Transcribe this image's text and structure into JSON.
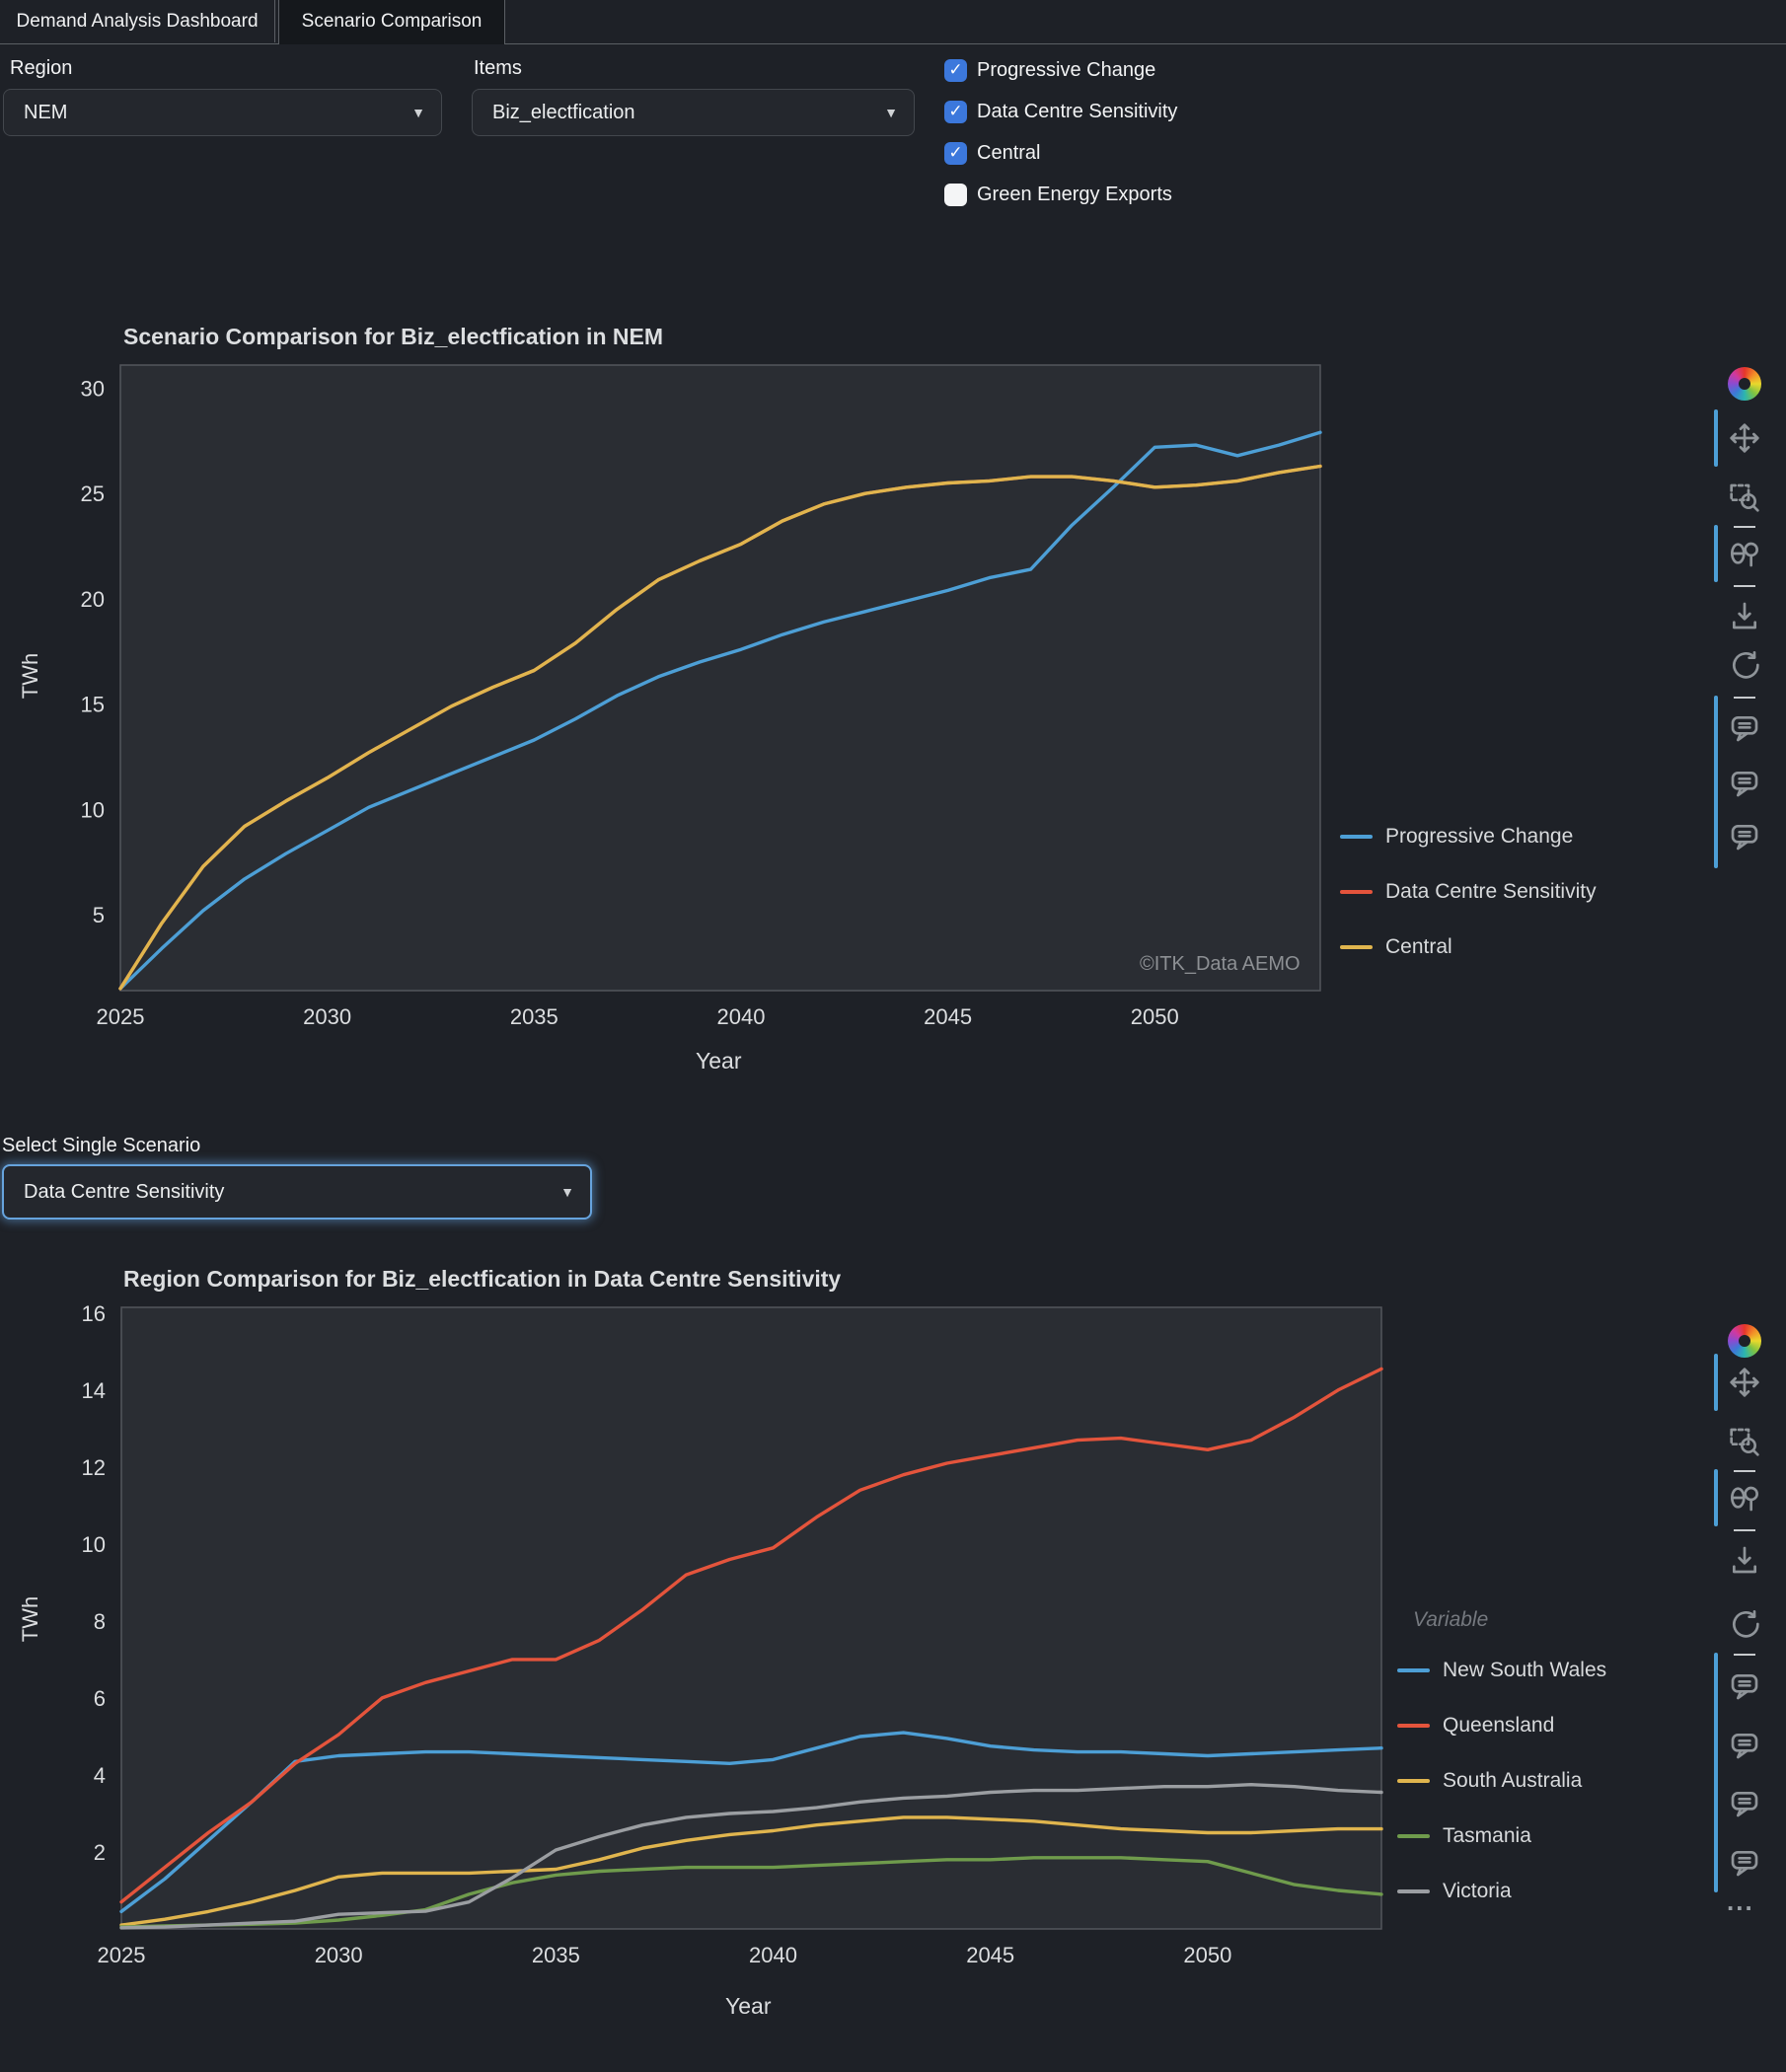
{
  "tabs": [
    {
      "label": "Demand Analysis Dashboard",
      "active": false
    },
    {
      "label": "Scenario Comparison",
      "active": true
    }
  ],
  "controls": {
    "region_label": "Region",
    "region_value": "NEM",
    "items_label": "Items",
    "items_value": "Biz_electfication",
    "checkboxes": [
      {
        "label": "Progressive Change",
        "checked": true
      },
      {
        "label": "Data Centre Sensitivity",
        "checked": true
      },
      {
        "label": "Central",
        "checked": true
      },
      {
        "label": "Green Energy Exports",
        "checked": false
      }
    ],
    "scenario_label": "Select Single Scenario",
    "scenario_value": "Data Centre Sensitivity"
  },
  "watermark": "©ITK_Data AEMO",
  "modebar": {
    "dots": "...",
    "icons": [
      "plotly-logo",
      "pan",
      "box-zoom",
      "compare-hover",
      "download",
      "reset-axes",
      "comment"
    ]
  },
  "colors": {
    "accent_blue": "#4d9fd6",
    "checkbox_blue": "#3c78dc",
    "plot_bg": "#2a2d33",
    "page_bg": "#1e2127"
  },
  "chart_data": [
    {
      "type": "line",
      "title": "Scenario Comparison for Biz_electfication in NEM",
      "xlabel": "Year",
      "ylabel": "TWh",
      "xticks": [
        2025,
        2030,
        2035,
        2040,
        2045,
        2050
      ],
      "yticks": [
        5,
        10,
        15,
        20,
        25,
        30
      ],
      "xlim": [
        2025,
        2054
      ],
      "ylim": [
        1.4,
        31.1
      ],
      "grid": false,
      "legend_position": "bottom-right-outside",
      "render_note": "Only two lines are visible: Data Centre Sensitivity coincides with Central and is hidden beneath it",
      "x": [
        2025,
        2026,
        2027,
        2028,
        2029,
        2030,
        2031,
        2032,
        2033,
        2034,
        2035,
        2036,
        2037,
        2038,
        2039,
        2040,
        2041,
        2042,
        2043,
        2044,
        2045,
        2046,
        2047,
        2048,
        2049,
        2050,
        2051,
        2052,
        2053,
        2054
      ],
      "series": [
        {
          "name": "Progressive Change",
          "color": "#4d9fd6",
          "values": [
            1.5,
            3.4,
            5.2,
            6.7,
            7.9,
            9.0,
            10.1,
            10.9,
            11.7,
            12.5,
            13.3,
            14.3,
            15.4,
            16.3,
            17.0,
            17.6,
            18.3,
            18.9,
            19.4,
            19.9,
            20.4,
            21.0,
            21.4,
            23.5,
            25.3,
            27.2,
            27.3,
            26.8,
            27.3,
            27.9
          ]
        },
        {
          "name": "Data Centre Sensitivity",
          "color": "#e4543c",
          "values": [
            1.5,
            4.6,
            7.3,
            9.2,
            10.4,
            11.5,
            12.7,
            13.8,
            14.9,
            15.8,
            16.6,
            17.9,
            19.5,
            20.9,
            21.8,
            22.6,
            23.7,
            24.5,
            25.0,
            25.3,
            25.5,
            25.6,
            25.8,
            25.8,
            25.6,
            25.3,
            25.4,
            25.6,
            26.0,
            26.3
          ]
        },
        {
          "name": "Central",
          "color": "#e0b54e",
          "values": [
            1.5,
            4.6,
            7.3,
            9.2,
            10.4,
            11.5,
            12.7,
            13.8,
            14.9,
            15.8,
            16.6,
            17.9,
            19.5,
            20.9,
            21.8,
            22.6,
            23.7,
            24.5,
            25.0,
            25.3,
            25.5,
            25.6,
            25.8,
            25.8,
            25.6,
            25.3,
            25.4,
            25.6,
            26.0,
            26.3
          ]
        }
      ]
    },
    {
      "type": "line",
      "title": "Region Comparison for Biz_electfication in Data Centre Sensitivity",
      "xlabel": "Year",
      "ylabel": "TWh",
      "legend_title": "Variable",
      "xticks": [
        2025,
        2030,
        2035,
        2040,
        2045,
        2050
      ],
      "yticks": [
        2,
        4,
        6,
        8,
        10,
        12,
        14,
        16
      ],
      "xlim": [
        2025,
        2054
      ],
      "ylim": [
        0,
        16.15
      ],
      "grid": false,
      "legend_position": "bottom-right-outside",
      "x": [
        2025,
        2026,
        2027,
        2028,
        2029,
        2030,
        2031,
        2032,
        2033,
        2034,
        2035,
        2036,
        2037,
        2038,
        2039,
        2040,
        2041,
        2042,
        2043,
        2044,
        2045,
        2046,
        2047,
        2048,
        2049,
        2050,
        2051,
        2052,
        2053,
        2054
      ],
      "series": [
        {
          "name": "New South Wales",
          "color": "#4d9fd6",
          "values": [
            0.45,
            1.3,
            2.3,
            3.3,
            4.35,
            4.5,
            4.55,
            4.6,
            4.6,
            4.55,
            4.5,
            4.45,
            4.4,
            4.35,
            4.3,
            4.4,
            4.7,
            5.0,
            5.1,
            4.95,
            4.75,
            4.65,
            4.6,
            4.6,
            4.55,
            4.5,
            4.55,
            4.6,
            4.65,
            4.7
          ]
        },
        {
          "name": "Queensland",
          "color": "#e4543c",
          "values": [
            0.7,
            1.6,
            2.5,
            3.3,
            4.3,
            5.05,
            6.0,
            6.4,
            6.7,
            7.0,
            7.0,
            7.5,
            8.3,
            9.2,
            9.6,
            9.9,
            10.7,
            11.4,
            11.8,
            12.1,
            12.3,
            12.5,
            12.7,
            12.75,
            12.6,
            12.45,
            12.7,
            13.3,
            14.0,
            14.55
          ]
        },
        {
          "name": "South Australia",
          "color": "#e0b54e",
          "values": [
            0.1,
            0.25,
            0.45,
            0.7,
            1.0,
            1.35,
            1.45,
            1.45,
            1.45,
            1.5,
            1.55,
            1.8,
            2.1,
            2.3,
            2.45,
            2.55,
            2.7,
            2.8,
            2.9,
            2.9,
            2.85,
            2.8,
            2.7,
            2.6,
            2.55,
            2.5,
            2.5,
            2.55,
            2.6,
            2.6
          ]
        },
        {
          "name": "Tasmania",
          "color": "#6f9b4c",
          "values": [
            0.05,
            0.08,
            0.1,
            0.12,
            0.15,
            0.23,
            0.35,
            0.5,
            0.9,
            1.2,
            1.4,
            1.5,
            1.55,
            1.6,
            1.6,
            1.6,
            1.65,
            1.7,
            1.75,
            1.8,
            1.8,
            1.85,
            1.85,
            1.85,
            1.8,
            1.75,
            1.45,
            1.15,
            1.0,
            0.9
          ]
        },
        {
          "name": "Victoria",
          "color": "#9b9ea2",
          "values": [
            0.03,
            0.05,
            0.1,
            0.15,
            0.2,
            0.38,
            0.42,
            0.46,
            0.7,
            1.33,
            2.05,
            2.4,
            2.7,
            2.9,
            3.0,
            3.05,
            3.15,
            3.3,
            3.4,
            3.45,
            3.55,
            3.6,
            3.6,
            3.65,
            3.7,
            3.7,
            3.75,
            3.7,
            3.6,
            3.55
          ]
        }
      ]
    }
  ]
}
